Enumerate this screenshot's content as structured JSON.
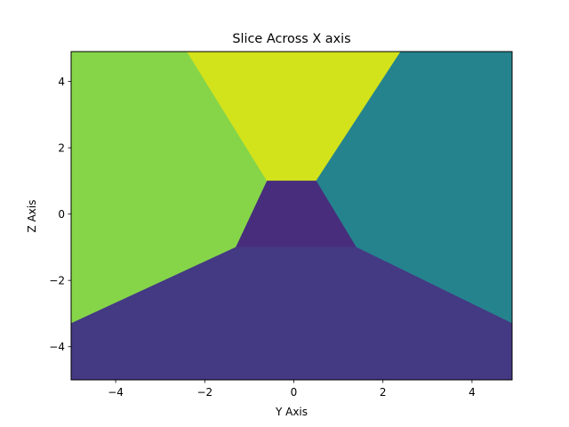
{
  "chart_data": {
    "type": "heatmap",
    "title": "Slice Across X axis",
    "xlabel": "Y Axis",
    "ylabel": "Z Axis",
    "xlim": [
      -5,
      4.9
    ],
    "ylim": [
      -5,
      4.9
    ],
    "xticks": [
      -4,
      -2,
      0,
      2,
      4
    ],
    "yticks": [
      -4,
      -2,
      0,
      2,
      4
    ],
    "xtick_labels": [
      "−4",
      "−2",
      "0",
      "2",
      "4"
    ],
    "ytick_labels": [
      "−4",
      "−2",
      "0",
      "2",
      "4"
    ],
    "regions": [
      {
        "id": "region-left",
        "color": "#86d549",
        "polygon": [
          [
            -5,
            -3.3
          ],
          [
            -1.3,
            -1.0
          ],
          [
            -0.6,
            1.0
          ],
          [
            -2.4,
            4.9
          ],
          [
            -5,
            4.9
          ]
        ]
      },
      {
        "id": "region-top",
        "color": "#d2e21b",
        "polygon": [
          [
            -2.4,
            4.9
          ],
          [
            2.4,
            4.9
          ],
          [
            0.5,
            1.0
          ],
          [
            -0.6,
            1.0
          ]
        ]
      },
      {
        "id": "region-right",
        "color": "#25838e",
        "polygon": [
          [
            2.4,
            4.9
          ],
          [
            4.9,
            4.9
          ],
          [
            4.9,
            -3.3
          ],
          [
            1.4,
            -1.0
          ],
          [
            0.5,
            1.0
          ]
        ]
      },
      {
        "id": "region-center",
        "color": "#472d7b",
        "polygon": [
          [
            -0.6,
            1.0
          ],
          [
            0.5,
            1.0
          ],
          [
            1.4,
            -1.0
          ],
          [
            -1.3,
            -1.0
          ]
        ]
      },
      {
        "id": "region-bottom",
        "color": "#443983",
        "polygon": [
          [
            -5,
            -5
          ],
          [
            4.9,
            -5
          ],
          [
            4.9,
            -3.3
          ],
          [
            1.4,
            -1.0
          ],
          [
            -1.3,
            -1.0
          ],
          [
            -5,
            -3.3
          ]
        ]
      }
    ]
  }
}
